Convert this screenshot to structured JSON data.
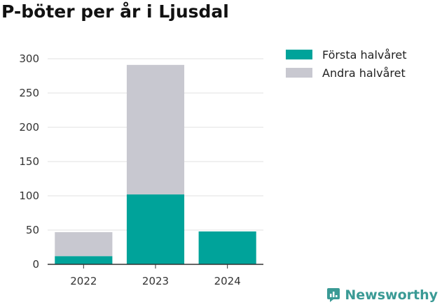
{
  "title": "P-böter per år i Ljusdal",
  "brand": {
    "name": "Newsworthy",
    "color": "#3a9a95",
    "icon": "newsworthy-chart-bubble-icon"
  },
  "chart_data": {
    "type": "bar",
    "stacked": true,
    "categories": [
      "2022",
      "2023",
      "2024"
    ],
    "series": [
      {
        "name": "Första halvåret",
        "color": "#00a39a",
        "values": [
          12,
          102,
          48
        ]
      },
      {
        "name": "Andra halvåret",
        "color": "#c8c8d0",
        "values": [
          35,
          189,
          0
        ]
      }
    ],
    "ylim": [
      0,
      300
    ],
    "yticks": [
      0,
      50,
      100,
      150,
      200,
      250,
      300
    ],
    "grid": true,
    "legend_position": "top-right",
    "xlabel": "",
    "ylabel": ""
  }
}
